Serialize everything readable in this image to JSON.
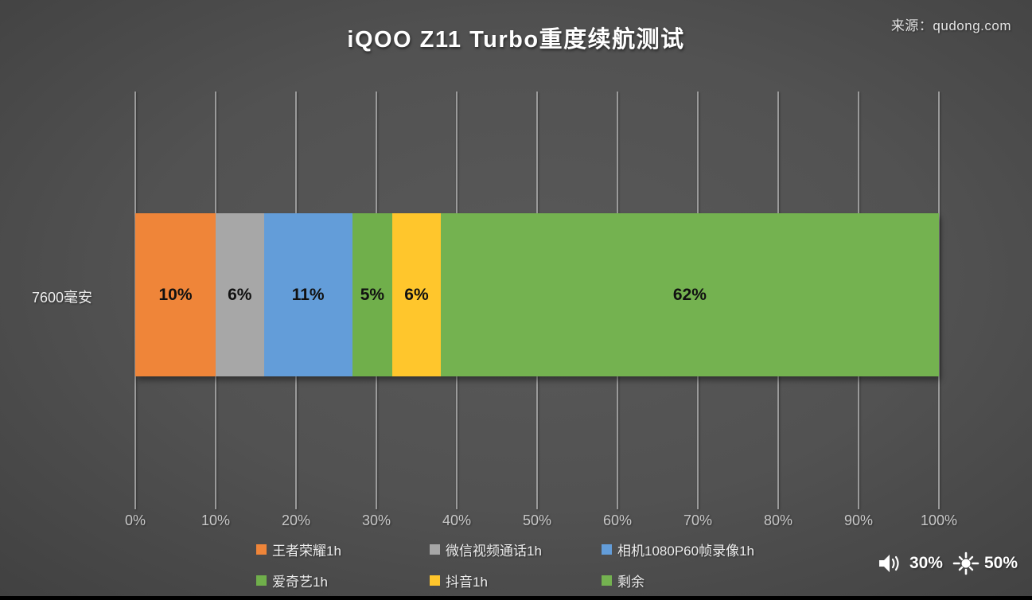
{
  "title": "iQOO Z11 Turbo重度续航测试",
  "source": "来源：qudong.com",
  "status": {
    "volume_icon": "speaker-icon",
    "volume": "30%",
    "brightness_icon": "brightness-sun-icon",
    "brightness": "50%"
  },
  "chart_data": {
    "type": "bar",
    "stacked": true,
    "orientation": "horizontal",
    "title": "iQOO Z11 Turbo重度续航测试",
    "categories": [
      "7600毫安"
    ],
    "series": [
      {
        "name": "王者荣耀1h",
        "values": [
          10
        ],
        "color": "#ef8539",
        "label": "10%"
      },
      {
        "name": "微信视频通话1h",
        "values": [
          6
        ],
        "color": "#a7a7a7",
        "label": "6%"
      },
      {
        "name": "相机1080P60帧录像1h",
        "values": [
          11
        ],
        "color": "#639dd9",
        "label": "11%"
      },
      {
        "name": "爱奇艺1h",
        "values": [
          5
        ],
        "color": "#70af4b",
        "label": "5%"
      },
      {
        "name": "抖音1h",
        "values": [
          6
        ],
        "color": "#ffc62c",
        "label": "6%"
      },
      {
        "name": "剩余",
        "values": [
          62
        ],
        "color": "#74b250",
        "label": "62%"
      }
    ],
    "xlim": [
      0,
      100
    ],
    "x_ticks": [
      "0%",
      "10%",
      "20%",
      "30%",
      "40%",
      "50%",
      "60%",
      "70%",
      "80%",
      "90%",
      "100%"
    ],
    "grid": true,
    "gridline_color": "#9a9a9a",
    "legend_position": "bottom",
    "background": "dark-gray-radial-gradient"
  }
}
